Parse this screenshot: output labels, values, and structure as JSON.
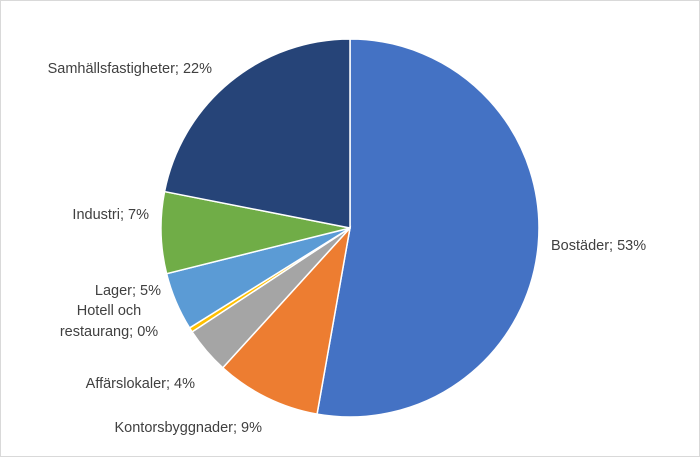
{
  "chart_data": {
    "type": "pie",
    "title": "",
    "slices": [
      {
        "label": "Bostäder; 53%",
        "name": "Bostäder",
        "value": 53,
        "color": "#4472c4"
      },
      {
        "label": "Kontorsbyggnader; 9%",
        "name": "Kontorsbyggnader",
        "value": 9,
        "color": "#ed7d31"
      },
      {
        "label": "Affärslokaler; 4%",
        "name": "Affärslokaler",
        "value": 4,
        "color": "#a5a5a5"
      },
      {
        "label": "Hotell och restaurang; 0%",
        "name": "Hotell och restaurang",
        "value": 0.4,
        "color": "#ffc000",
        "label_lines": [
          "Hotell och",
          "restaurang; 0%"
        ]
      },
      {
        "label": "Lager; 5%",
        "name": "Lager",
        "value": 5,
        "color": "#5b9bd5"
      },
      {
        "label": "Industri; 7%",
        "name": "Industri",
        "value": 7,
        "color": "#70ad47"
      },
      {
        "label": "Samhällsfastigheter; 22%",
        "name": "Samhällsfastigheter",
        "value": 22,
        "color": "#264478"
      }
    ],
    "start_angle_deg": 0,
    "direction": "clockwise",
    "legend": "none",
    "data_labels": "outside"
  }
}
